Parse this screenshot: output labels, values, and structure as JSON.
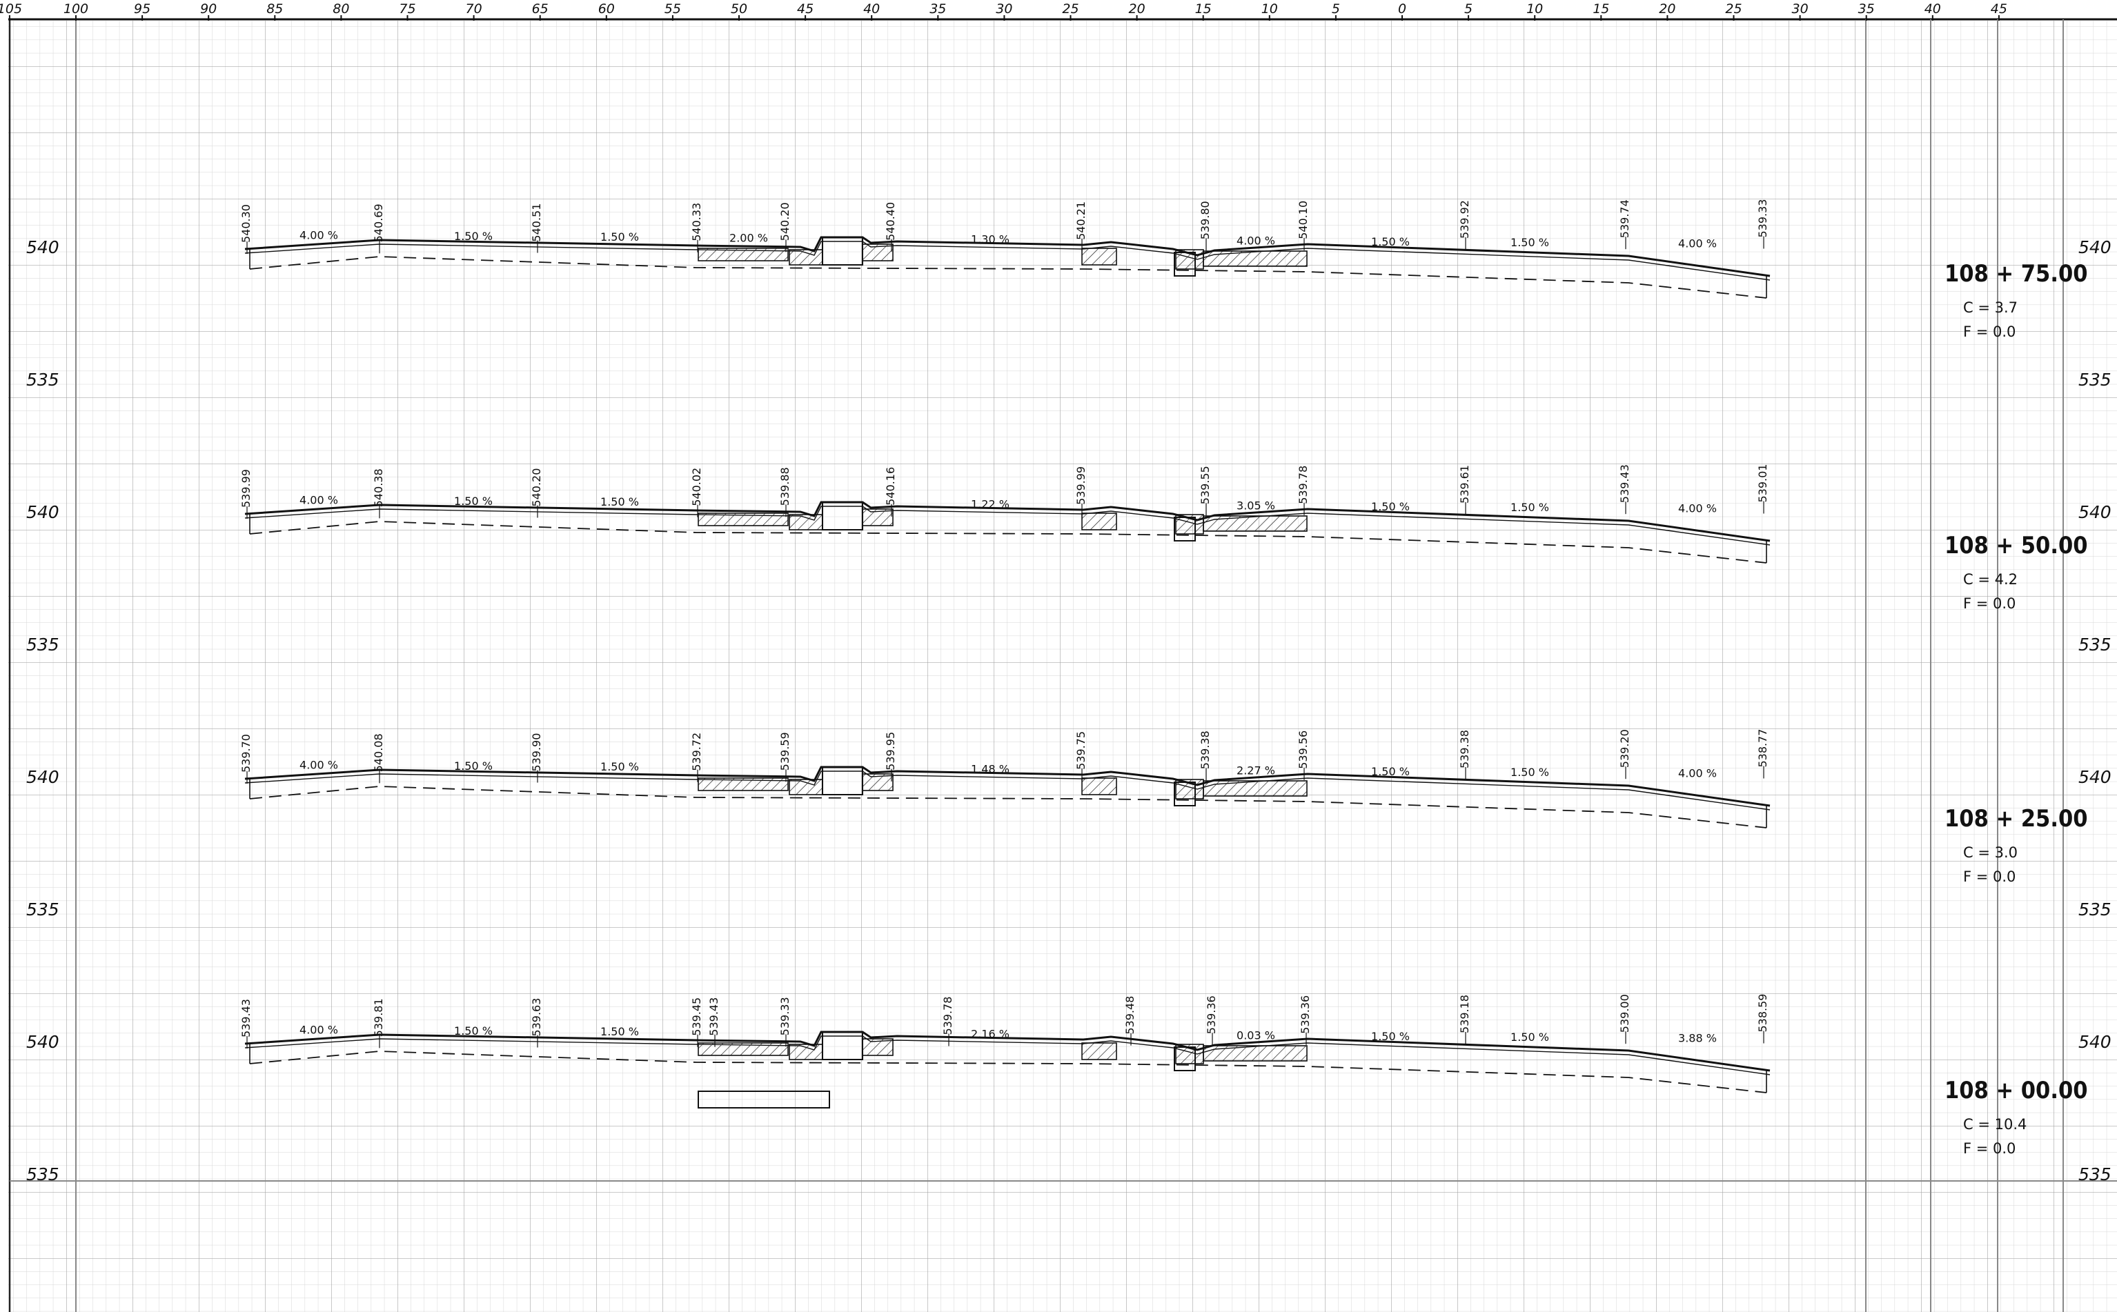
{
  "sheet": {
    "offset_ticks": [
      "105",
      "100",
      "95",
      "90",
      "85",
      "80",
      "75",
      "70",
      "65",
      "60",
      "55",
      "50",
      "45",
      "40",
      "35",
      "30",
      "25",
      "20",
      "15",
      "10",
      "5",
      "0",
      "5",
      "10",
      "15",
      "20",
      "25",
      "30",
      "35",
      "40",
      "45"
    ],
    "colors": {
      "ink": "#111111",
      "grid_minor": "#d6d6d6",
      "grid_major": "#a9a9a9"
    }
  },
  "sections": [
    {
      "station": "108 + 75.00",
      "cut": "C  =  3.7",
      "fill": "F  =  0.0",
      "elev_labels": [
        "540",
        "535"
      ],
      "offsets": [
        "540.30",
        "540.69",
        "540.51",
        "540.33",
        "540.20",
        "540.40",
        "540.21",
        "539.80",
        "540.10",
        "539.92",
        "539.74",
        "539.33"
      ],
      "slopes": [
        "4.00 %",
        "1.50 %",
        "1.50 %",
        "2.00 %",
        "1.30 %",
        "4.00 %",
        "1.50 %",
        "1.50 %",
        "4.00 %"
      ]
    },
    {
      "station": "108 + 50.00",
      "cut": "C  =  4.2",
      "fill": "F  =  0.0",
      "elev_labels": [
        "540",
        "535"
      ],
      "offsets": [
        "539.99",
        "540.38",
        "540.20",
        "540.02",
        "539.88",
        "540.16",
        "539.99",
        "539.55",
        "539.78",
        "539.61",
        "539.43",
        "539.01"
      ],
      "slopes": [
        "4.00 %",
        "1.50 %",
        "1.50 %",
        "1.22 %",
        "3.05 %",
        "1.50 %",
        "1.50 %",
        "4.00 %"
      ]
    },
    {
      "station": "108 + 25.00",
      "cut": "C  =  3.0",
      "fill": "F  =  0.0",
      "elev_labels": [
        "540",
        "535"
      ],
      "offsets": [
        "539.70",
        "540.08",
        "539.90",
        "539.72",
        "539.59",
        "539.95",
        "539.75",
        "539.38",
        "539.56",
        "539.38",
        "539.20",
        "538.77"
      ],
      "slopes": [
        "4.00 %",
        "1.50 %",
        "1.50 %",
        "1.48 %",
        "2.27 %",
        "1.50 %",
        "1.50 %",
        "4.00 %"
      ]
    },
    {
      "station": "108 + 00.00",
      "cut": "C  =  10.4",
      "fill": "F  =  0.0",
      "elev_labels": [
        "540",
        "535"
      ],
      "offsets": [
        "539.43",
        "539.81",
        "539.63",
        "539.45",
        "539.43",
        "539.33",
        "539.78",
        "539.48",
        "539.36",
        "539.36",
        "539.18",
        "539.00",
        "538.59"
      ],
      "slopes": [
        "4.00 %",
        "1.50 %",
        "1.50 %",
        "2.16 %",
        "0.03 %",
        "1.50 %",
        "1.50 %",
        "3.88 %"
      ]
    }
  ]
}
